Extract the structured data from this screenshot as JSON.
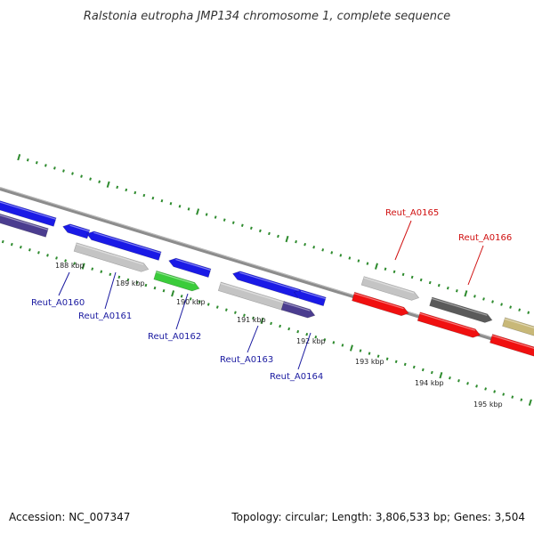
{
  "title": "Ralstonia eutropha JMP134 chromosome 1, complete sequence",
  "accession": "Accession: NC_007347",
  "topology": "Topology: circular; Length: 3,806,533 bp; Genes: 3,504",
  "colors": {
    "backbone": "#8c8c8c",
    "tick": "#2e8b2e",
    "blue": "#1a1ae6",
    "navy": "#4b3d8f",
    "gray": "#c4c4c4",
    "green": "#3bcc3b",
    "red": "#f01010",
    "darkgray": "#5a5a5a",
    "khaki": "#c8b878",
    "label_blue": "#1a1aa0",
    "label_red": "#d01010"
  },
  "scale_labels": [
    "188 kbp",
    "189 kbp",
    "190 kbp",
    "191 kbp",
    "192 kbp",
    "193 kbp",
    "194 kbp",
    "195 kbp"
  ],
  "gene_labels": [
    {
      "text": "Reut_A0160",
      "color": "label_blue"
    },
    {
      "text": "Reut_A0161",
      "color": "label_blue"
    },
    {
      "text": "Reut_A0162",
      "color": "label_blue"
    },
    {
      "text": "Reut_A0163",
      "color": "label_blue"
    },
    {
      "text": "Reut_A0164",
      "color": "label_blue"
    },
    {
      "text": "Reut_A0165",
      "color": "label_red"
    },
    {
      "text": "Reut_A0166",
      "color": "label_red"
    }
  ],
  "features": [
    {
      "color": "blue",
      "strand": "-"
    },
    {
      "color": "navy",
      "strand": "-"
    },
    {
      "color": "blue",
      "strand": "-"
    },
    {
      "color": "blue",
      "strand": "-"
    },
    {
      "color": "gray",
      "strand": "+"
    },
    {
      "color": "blue",
      "strand": "-"
    },
    {
      "color": "green",
      "strand": "+"
    },
    {
      "color": "blue",
      "strand": "-"
    },
    {
      "color": "gray",
      "strand": "+"
    },
    {
      "color": "blue",
      "strand": "-"
    },
    {
      "color": "navy",
      "strand": "+"
    },
    {
      "color": "gray",
      "strand": "+"
    },
    {
      "color": "red",
      "strand": "+"
    },
    {
      "color": "darkgray",
      "strand": "+"
    },
    {
      "color": "red",
      "strand": "+"
    },
    {
      "color": "khaki",
      "strand": "+"
    },
    {
      "color": "red",
      "strand": "+"
    }
  ]
}
